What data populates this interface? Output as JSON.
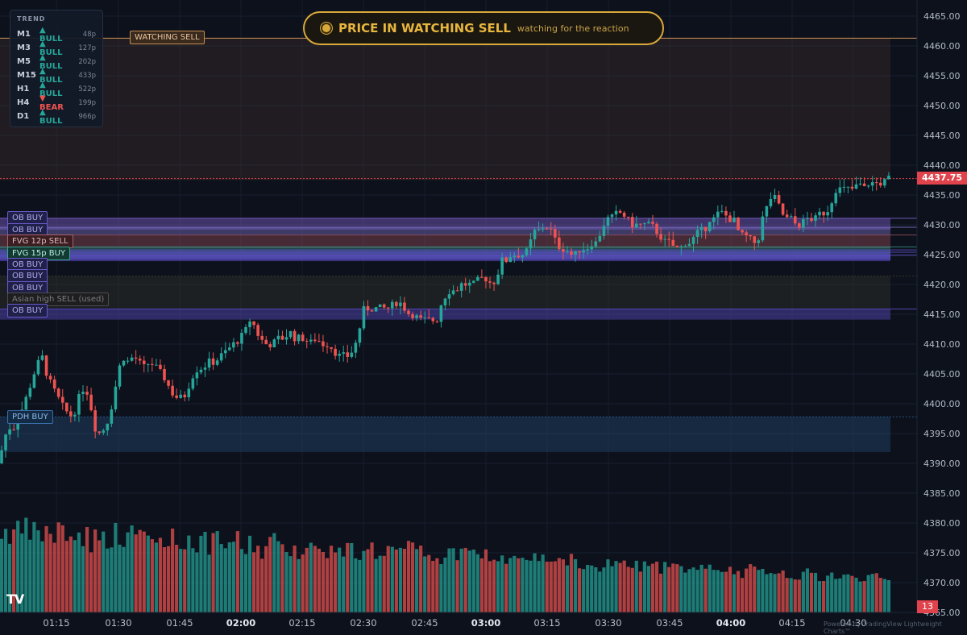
{
  "trend_panel": {
    "title": "TREND",
    "rows": [
      {
        "tf": "M1",
        "dir": "▲ BULL",
        "pts": "48p",
        "state": "bull"
      },
      {
        "tf": "M3",
        "dir": "▲ BULL",
        "pts": "127p",
        "state": "bull"
      },
      {
        "tf": "M5",
        "dir": "▲ BULL",
        "pts": "202p",
        "state": "bull"
      },
      {
        "tf": "M15",
        "dir": "▲ BULL",
        "pts": "433p",
        "state": "bull"
      },
      {
        "tf": "H1",
        "dir": "▲ BULL",
        "pts": "522p",
        "state": "bull"
      },
      {
        "tf": "H4",
        "dir": "▼ BEAR",
        "pts": "199p",
        "state": "bear"
      },
      {
        "tf": "D1",
        "dir": "▲ BULL",
        "pts": "966p",
        "state": "bull"
      }
    ]
  },
  "banner": {
    "title": "PRICE IN WATCHING SELL",
    "subtitle": "watching for the reaction",
    "color": "#d9a93a"
  },
  "zone_labels": {
    "watching_sell": "WATCHING SELL",
    "ob_buy_1": "OB BUY",
    "ob_buy_2": "OB BUY",
    "fvg_sell": "FVG 12p SELL",
    "fvg_buy": "FVG 15p BUY",
    "ob_buy_3": "OB BUY",
    "ob_buy_4": "OB BUY",
    "ob_buy_5": "OB BUY",
    "asian_high": "Asian high SELL (used)",
    "ob_buy_6": "OB BUY",
    "pdh_buy": "PDH BUY"
  },
  "current_price": "4437.75",
  "current_volume": "13",
  "powered_by": "Powered by TradingView Lightweight Charts™",
  "colors": {
    "bull": "#26a69a",
    "bear": "#ef5350",
    "background": "#0c111c"
  },
  "chart_data": {
    "type": "candlestick",
    "y_ticks": [
      4465,
      4460,
      4455,
      4450,
      4445,
      4440,
      4435,
      4430,
      4425,
      4420,
      4415,
      4410,
      4405,
      4400,
      4395,
      4390,
      4385,
      4380,
      4375,
      4370
    ],
    "y_tick_labels": [
      "4465.00",
      "4460.00",
      "4455.00",
      "4450.00",
      "4445.00",
      "4440.00",
      "4435.00",
      "4430.00",
      "4425.00",
      "4420.00",
      "4415.00",
      "4410.00",
      "4405.00",
      "4400.00",
      "4395.00",
      "4390.00",
      "4385.00",
      "4380.00",
      "4375.00",
      "4370.00"
    ],
    "y_tick_partial": "4365.00",
    "x_ticks": [
      "01:15",
      "01:30",
      "01:45",
      "02:00",
      "02:15",
      "02:30",
      "02:45",
      "03:00",
      "03:15",
      "03:30",
      "03:45",
      "04:00",
      "04:15",
      "04:30"
    ],
    "x_ticks_bold": [
      "02:00",
      "03:00",
      "04:00"
    ],
    "ylim": [
      4363.5,
      4467.5
    ],
    "close_path": [
      [
        0,
        4391
      ],
      [
        5,
        4394
      ],
      [
        10,
        4396
      ],
      [
        18,
        4396
      ],
      [
        24,
        4398
      ],
      [
        30,
        4400
      ],
      [
        35,
        4402
      ],
      [
        42,
        4405
      ],
      [
        48,
        4407
      ],
      [
        52,
        4408
      ],
      [
        58,
        4405
      ],
      [
        64,
        4403
      ],
      [
        72,
        4401
      ],
      [
        80,
        4399
      ],
      [
        88,
        4398
      ],
      [
        94,
        4399
      ],
      [
        100,
        4402
      ],
      [
        106,
        4403
      ],
      [
        112,
        4400
      ],
      [
        118,
        4396
      ],
      [
        124,
        4395
      ],
      [
        130,
        4396
      ],
      [
        136,
        4398
      ],
      [
        142,
        4402
      ],
      [
        148,
        4406
      ],
      [
        152,
        4408
      ],
      [
        158,
        4407
      ],
      [
        166,
        4408
      ],
      [
        172,
        4407
      ],
      [
        178,
        4406
      ],
      [
        186,
        4407
      ],
      [
        194,
        4406
      ],
      [
        200,
        4405
      ],
      [
        206,
        4404
      ],
      [
        212,
        4402
      ],
      [
        220,
        4401
      ],
      [
        228,
        4401
      ],
      [
        234,
        4403
      ],
      [
        240,
        4405
      ],
      [
        246,
        4406
      ],
      [
        252,
        4406
      ],
      [
        258,
        4407
      ],
      [
        266,
        4407
      ],
      [
        274,
        4408
      ],
      [
        282,
        4409
      ],
      [
        290,
        4410
      ],
      [
        298,
        4411
      ],
      [
        304,
        4412
      ],
      [
        310,
        4414
      ],
      [
        316,
        4413
      ],
      [
        322,
        4411
      ],
      [
        330,
        4410
      ],
      [
        338,
        4410
      ],
      [
        346,
        4411
      ],
      [
        352,
        4411
      ],
      [
        360,
        4412
      ],
      [
        366,
        4411
      ],
      [
        372,
        4411
      ],
      [
        378,
        4411
      ],
      [
        384,
        4410
      ],
      [
        392,
        4411
      ],
      [
        400,
        4410
      ],
      [
        408,
        4410
      ],
      [
        414,
        4409
      ],
      [
        420,
        4408
      ],
      [
        426,
        4408
      ],
      [
        432,
        4408
      ],
      [
        438,
        4409
      ],
      [
        444,
        4411
      ],
      [
        448,
        4414
      ],
      [
        452,
        4416
      ],
      [
        458,
        4416
      ],
      [
        464,
        4416
      ],
      [
        470,
        4416
      ],
      [
        476,
        4416
      ],
      [
        484,
        4416
      ],
      [
        490,
        4417
      ],
      [
        496,
        4417
      ],
      [
        502,
        4416
      ],
      [
        508,
        4415
      ],
      [
        514,
        4415
      ],
      [
        520,
        4414
      ],
      [
        528,
        4414
      ],
      [
        536,
        4414
      ],
      [
        542,
        4414
      ],
      [
        548,
        4417
      ],
      [
        552,
        4418
      ],
      [
        558,
        4419
      ],
      [
        566,
        4419
      ],
      [
        572,
        4420
      ],
      [
        580,
        4420
      ],
      [
        588,
        4420
      ],
      [
        596,
        4421
      ],
      [
        604,
        4421
      ],
      [
        610,
        4420
      ],
      [
        616,
        4421
      ],
      [
        622,
        4424
      ],
      [
        628,
        4424
      ],
      [
        634,
        4425
      ],
      [
        640,
        4425
      ],
      [
        646,
        4425
      ],
      [
        652,
        4425
      ],
      [
        658,
        4427
      ],
      [
        664,
        4429
      ],
      [
        670,
        4429
      ],
      [
        676,
        4430
      ],
      [
        684,
        4429
      ],
      [
        690,
        4427
      ],
      [
        696,
        4426
      ],
      [
        702,
        4426
      ],
      [
        708,
        4425
      ],
      [
        714,
        4425
      ],
      [
        720,
        4426
      ],
      [
        728,
        4426
      ],
      [
        734,
        4427
      ],
      [
        740,
        4427
      ],
      [
        746,
        4429
      ],
      [
        752,
        4431
      ],
      [
        758,
        4431
      ],
      [
        766,
        4432
      ],
      [
        772,
        4432
      ],
      [
        778,
        4431
      ],
      [
        784,
        4430
      ],
      [
        790,
        4430
      ],
      [
        796,
        4430
      ],
      [
        802,
        4430
      ],
      [
        808,
        4430
      ],
      [
        814,
        4429
      ],
      [
        820,
        4428
      ],
      [
        826,
        4427
      ],
      [
        832,
        4427
      ],
      [
        838,
        4426
      ],
      [
        844,
        4426
      ],
      [
        850,
        4427
      ],
      [
        856,
        4427
      ],
      [
        862,
        4428
      ],
      [
        868,
        4429
      ],
      [
        874,
        4429
      ],
      [
        880,
        4431
      ],
      [
        886,
        4431
      ],
      [
        892,
        4432
      ],
      [
        898,
        4432
      ],
      [
        904,
        4431
      ],
      [
        910,
        4431
      ],
      [
        916,
        4429
      ],
      [
        922,
        4428
      ],
      [
        928,
        4428
      ],
      [
        934,
        4427
      ],
      [
        940,
        4427
      ],
      [
        946,
        4431
      ],
      [
        952,
        4433
      ],
      [
        958,
        4435
      ],
      [
        964,
        4434
      ],
      [
        970,
        4432
      ],
      [
        976,
        4431
      ],
      [
        982,
        4431
      ],
      [
        988,
        4430
      ],
      [
        994,
        4430
      ],
      [
        1000,
        4431
      ],
      [
        1006,
        4431
      ],
      [
        1012,
        4431
      ],
      [
        1018,
        4432
      ],
      [
        1024,
        4432
      ],
      [
        1030,
        4433
      ],
      [
        1036,
        4436
      ],
      [
        1042,
        4436
      ],
      [
        1048,
        4436
      ],
      [
        1054,
        4436
      ],
      [
        1060,
        4436
      ],
      [
        1066,
        4437
      ],
      [
        1072,
        4436
      ],
      [
        1078,
        4437
      ],
      [
        1084,
        4437
      ],
      [
        1090,
        4437
      ],
      [
        1096,
        4437
      ],
      [
        1102,
        4437.75
      ]
    ],
    "zones": [
      {
        "label_key": "watching_sell",
        "top": 4461.3,
        "bottom": 4437.5,
        "color": "#6a4338"
      },
      {
        "label_key": "ob_buy_1",
        "top": 4431.1,
        "bottom": 4429.2,
        "color": "#7d5fc8"
      },
      {
        "label_key": "ob_buy_2",
        "top": 4429.6,
        "bottom": 4428.3,
        "color": "#7a6cc0"
      },
      {
        "label_key": "fvg_sell",
        "top": 4428.3,
        "bottom": 4426.1,
        "color": "#8d4b58"
      },
      {
        "label_key": "fvg_buy",
        "top": 4426.3,
        "bottom": 4424.4,
        "color": "#3a8a80"
      },
      {
        "label_key": "ob_buy_3",
        "top": 4425.8,
        "bottom": 4424.2,
        "color": "#5b4cc0"
      },
      {
        "label_key": "ob_buy_4",
        "top": 4425.4,
        "bottom": 4424.0,
        "color": "#5b4cc0"
      },
      {
        "label_key": "ob_buy_5",
        "top": 4424.9,
        "bottom": 4423.9,
        "color": "#5b4cc0"
      },
      {
        "label_key": "asian_high",
        "top": 4421.4,
        "bottom": 4416.0,
        "color": "#3b3b2f"
      },
      {
        "label_key": "ob_buy_6",
        "top": 4415.9,
        "bottom": 4414.1,
        "color": "#5b4cc0"
      },
      {
        "label_key": "pdh_buy",
        "top": 4397.8,
        "bottom": 4391.9,
        "color": "#2a5683"
      }
    ]
  }
}
